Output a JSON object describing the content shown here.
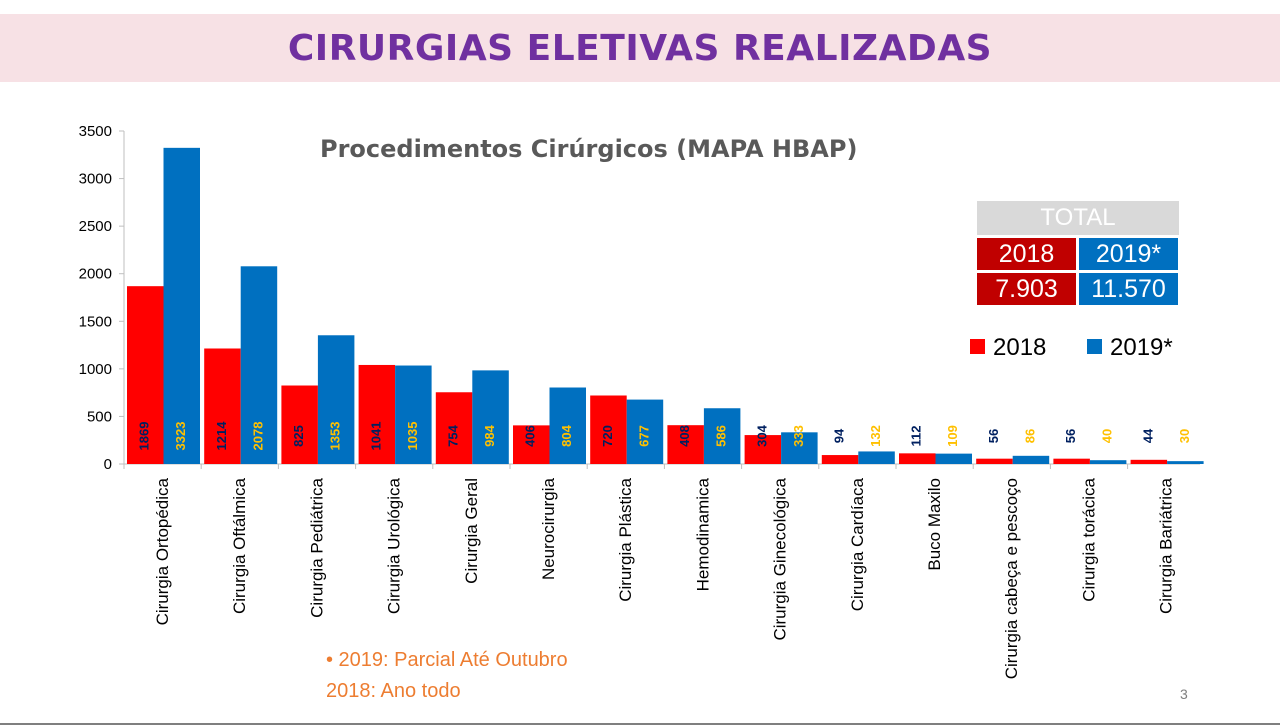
{
  "banner": {
    "title": "CIRURGIAS ELETIVAS REALIZADAS"
  },
  "totals": {
    "header": "TOTAL",
    "year_2018": "2018",
    "year_2019": "2019*",
    "value_2018": "7.903",
    "value_2019": "11.570"
  },
  "notes": {
    "line1": "•     2019: Parcial Até Outubro",
    "line2": "2018: Ano todo"
  },
  "page_number": "3",
  "colors": {
    "series_2018": "#ff0000",
    "series_2019": "#0070c0",
    "label_2018": "#002060",
    "label_2019": "#ffc000",
    "title": "#7030a0"
  },
  "chart_data": {
    "type": "bar",
    "title": "Procedimentos Cirúrgicos (MAPA HBAP)",
    "xlabel": "",
    "ylabel": "",
    "ylim": [
      0,
      3500
    ],
    "yticks": [
      0,
      500,
      1000,
      1500,
      2000,
      2500,
      3000,
      3500
    ],
    "grid": false,
    "legend_position": "right",
    "categories": [
      "Cirurgia Ortopédica",
      "Cirurgia Oftálmica",
      "Cirurgia Pediátrica",
      "Cirurgia Urológica",
      "Cirurgia Geral",
      "Neurocirurgia",
      "Cirurgia Plástica",
      "Hemodinamica",
      "Cirurgia Ginecológica",
      "Cirurgia Cardíaca",
      "Buco Maxilo",
      "Cirurgia cabeça e pescoço",
      "Cirurgia torácica",
      "Cirurgia Bariátrica"
    ],
    "series": [
      {
        "name": "2018",
        "values": [
          1869,
          1214,
          825,
          1041,
          754,
          406,
          720,
          408,
          304,
          94,
          112,
          56,
          56,
          44
        ]
      },
      {
        "name": "2019*",
        "values": [
          3323,
          2078,
          1353,
          1035,
          984,
          804,
          677,
          586,
          333,
          132,
          109,
          86,
          40,
          30
        ]
      }
    ]
  }
}
